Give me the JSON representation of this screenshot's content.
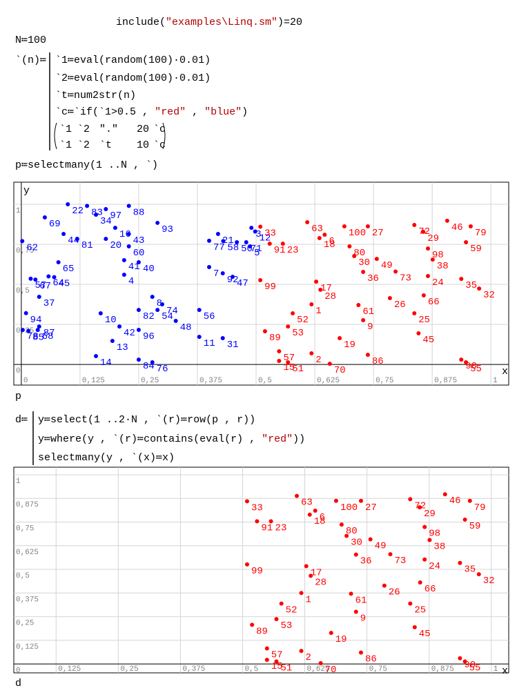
{
  "worksheet": {
    "include_line": [
      "include(",
      "\"examples\\Linq.sm\"",
      ")=20"
    ],
    "n_line": [
      "N≔100"
    ],
    "func_head": [
      "`(n)≔"
    ],
    "func_body": [
      [
        "`1≔eval(random(100)·0.01)"
      ],
      [
        "`2≔eval(random(100)·0.01)"
      ],
      [
        "`t≔num2str(n)"
      ],
      [
        "`c≔`if(`1>0.5 , ",
        "\"red\"",
        " , ",
        "\"blue\"",
        ")"
      ]
    ],
    "matrix": [
      [
        "`1",
        "`2",
        "\".\"",
        "20",
        "`c"
      ],
      [
        "`1",
        "`2",
        "`t",
        "10",
        "`c"
      ]
    ],
    "p_line": [
      "p≔selectmany(1 ..N , `)"
    ],
    "plot1_caption": "p",
    "d_head": [
      "d≔"
    ],
    "d_body": [
      [
        "y≔select(1 ..2·N , `(r)≔row(p , r))"
      ],
      [
        "y≔where(y , `(r)≔contains(eval(r) , ",
        "\"red\"",
        "))"
      ],
      [
        "selectmany(y , `(x)≔x)"
      ]
    ],
    "plot2_caption": "d"
  },
  "chart_data": [
    {
      "type": "scatter",
      "x_label": "x",
      "y_label": "y",
      "grid": true,
      "xlim": [
        -0.016,
        1.038
      ],
      "ylim": [
        -0.129,
        1.138
      ],
      "xticks": [
        0,
        {
          "value": 0.125,
          "label": "0,125"
        },
        {
          "value": 0.25,
          "label": "0,25"
        },
        {
          "value": 0.375,
          "label": "0,375"
        },
        {
          "value": 0.5,
          "label": "0,5"
        },
        {
          "value": 0.625,
          "label": "0,625"
        },
        {
          "value": 0.75,
          "label": "0,75"
        },
        {
          "value": 0.875,
          "label": "0,875"
        },
        1
      ],
      "yticks": [
        0,
        {
          "value": 0.25,
          "label": "0,25"
        },
        {
          "value": 0.5,
          "label": "0,5"
        },
        {
          "value": 0.75,
          "label": "0,75"
        },
        1
      ],
      "series": [
        {
          "color": "#0000ff",
          "labels": [
            94,
            78,
            85,
            68,
            69,
            22,
            83,
            97,
            34,
            16,
            88,
            44,
            81,
            62,
            20,
            43,
            60,
            93,
            65,
            41,
            40,
            57,
            67,
            64,
            45,
            4,
            37,
            10,
            82,
            8,
            54,
            74,
            48,
            56,
            42,
            96,
            87,
            14,
            84,
            76,
            13,
            11,
            31,
            7,
            92,
            47,
            77,
            21,
            58,
            50,
            71,
            5,
            3,
            12
          ],
          "x": [
            0.01,
            0.003,
            0.015,
            0.035,
            0.05,
            0.099,
            0.14,
            0.18,
            0.159,
            0.2,
            0.229,
            0.09,
            0.119,
            0.002,
            0.18,
            0.229,
            0.229,
            0.29,
            0.079,
            0.219,
            0.25,
            0.02,
            0.03,
            0.058,
            0.07,
            0.219,
            0.038,
            0.169,
            0.25,
            0.279,
            0.29,
            0.3,
            0.329,
            0.379,
            0.209,
            0.25,
            0.038,
            0.159,
            0.25,
            0.279,
            0.194,
            0.379,
            0.429,
            0.4,
            0.429,
            0.45,
            0.4,
            0.419,
            0.43,
            0.459,
            0.479,
            0.487,
            0.49,
            0.498
          ],
          "values": [
            0.32,
            0.215,
            0.21,
            0.215,
            0.918,
            1,
            0.99,
            0.97,
            0.935,
            0.853,
            0.99,
            0.815,
            0.784,
            0.77,
            0.784,
            0.815,
            0.737,
            0.884,
            0.638,
            0.651,
            0.638,
            0.535,
            0.53,
            0.55,
            0.545,
            0.56,
            0.422,
            0.319,
            0.34,
            0.422,
            0.34,
            0.375,
            0.272,
            0.34,
            0.237,
            0.216,
            0.237,
            0.052,
            0.03,
            0.013,
            0.147,
            0.172,
            0.164,
            0.608,
            0.569,
            0.547,
            0.772,
            0.815,
            0.77,
            0.763,
            0.763,
            0.737,
            0.853,
            0.83
          ]
        },
        {
          "color": "#ff0000",
          "labels": [
            33,
            91,
            23,
            63,
            6,
            18,
            100,
            27,
            80,
            30,
            36,
            49,
            73,
            72,
            29,
            46,
            79,
            98,
            59,
            38,
            24,
            35,
            32,
            66,
            26,
            99,
            17,
            28,
            1,
            61,
            9,
            52,
            53,
            89,
            19,
            25,
            45,
            57,
            2,
            86,
            15,
            51,
            70,
            90,
            55
          ],
          "x": [
            0.509,
            0.529,
            0.557,
            0.609,
            0.646,
            0.635,
            0.688,
            0.738,
            0.699,
            0.709,
            0.728,
            0.757,
            0.797,
            0.837,
            0.856,
            0.907,
            0.957,
            0.866,
            0.947,
            0.876,
            0.866,
            0.937,
            0.975,
            0.857,
            0.785,
            0.509,
            0.628,
            0.637,
            0.618,
            0.718,
            0.728,
            0.578,
            0.568,
            0.519,
            0.678,
            0.837,
            0.846,
            0.549,
            0.618,
            0.738,
            0.549,
            0.568,
            0.657,
            0.937,
            0.947
          ],
          "values": [
            0.86,
            0.754,
            0.754,
            0.888,
            0.81,
            0.789,
            0.862,
            0.862,
            0.737,
            0.677,
            0.578,
            0.659,
            0.58,
            0.871,
            0.828,
            0.897,
            0.862,
            0.724,
            0.763,
            0.655,
            0.552,
            0.534,
            0.474,
            0.431,
            0.414,
            0.526,
            0.517,
            0.466,
            0.375,
            0.371,
            0.276,
            0.319,
            0.237,
            0.207,
            0.164,
            0.319,
            0.194,
            0.082,
            0.069,
            0.06,
            0.022,
            0.013,
            0.004,
            0.03,
            0.013
          ]
        }
      ]
    },
    {
      "type": "scatter",
      "x_label": "x",
      "grid": true,
      "xlim": [
        0.04,
        1.035
      ],
      "ylim": [
        -0.047,
        1.04
      ],
      "xticks": [
        {
          "value": 0.125,
          "label": "0,125"
        },
        {
          "value": 0.25,
          "label": "0,25"
        },
        {
          "value": 0.375,
          "label": "0,375"
        },
        {
          "value": 0.5,
          "label": "0,5"
        },
        {
          "value": 0.625,
          "label": "0,625"
        },
        {
          "value": 0.75,
          "label": "0,75"
        },
        {
          "value": 0.875,
          "label": "0,875"
        },
        1
      ],
      "yticks": [
        0,
        {
          "value": 0.125,
          "label": "0,125"
        },
        {
          "value": 0.25,
          "label": "0,25"
        },
        {
          "value": 0.375,
          "label": "0,375"
        },
        {
          "value": 0.5,
          "label": "0,5"
        },
        {
          "value": 0.625,
          "label": "0,625"
        },
        {
          "value": 0.75,
          "label": "0,75"
        },
        {
          "value": 0.875,
          "label": "0,875"
        },
        1
      ],
      "series": [
        {
          "color": "#ff0000",
          "labels": [
            33,
            91,
            23,
            63,
            6,
            18,
            100,
            27,
            80,
            30,
            36,
            49,
            73,
            72,
            29,
            46,
            79,
            98,
            59,
            38,
            24,
            35,
            32,
            66,
            26,
            99,
            17,
            28,
            1,
            61,
            9,
            52,
            53,
            89,
            19,
            25,
            45,
            57,
            2,
            86,
            15,
            51,
            70,
            90,
            55
          ],
          "x": [
            0.509,
            0.529,
            0.557,
            0.609,
            0.646,
            0.635,
            0.688,
            0.738,
            0.699,
            0.709,
            0.728,
            0.757,
            0.797,
            0.837,
            0.856,
            0.907,
            0.957,
            0.866,
            0.947,
            0.876,
            0.866,
            0.937,
            0.975,
            0.857,
            0.785,
            0.509,
            0.628,
            0.637,
            0.618,
            0.718,
            0.728,
            0.578,
            0.568,
            0.519,
            0.678,
            0.837,
            0.846,
            0.549,
            0.618,
            0.738,
            0.549,
            0.568,
            0.657,
            0.937,
            0.947
          ],
          "values": [
            0.86,
            0.754,
            0.754,
            0.888,
            0.81,
            0.789,
            0.862,
            0.862,
            0.737,
            0.677,
            0.578,
            0.659,
            0.58,
            0.871,
            0.828,
            0.897,
            0.862,
            0.724,
            0.763,
            0.655,
            0.552,
            0.534,
            0.474,
            0.431,
            0.414,
            0.526,
            0.517,
            0.466,
            0.375,
            0.371,
            0.276,
            0.319,
            0.237,
            0.207,
            0.164,
            0.319,
            0.194,
            0.082,
            0.069,
            0.06,
            0.022,
            0.013,
            0.004,
            0.03,
            0.013
          ]
        }
      ]
    }
  ]
}
